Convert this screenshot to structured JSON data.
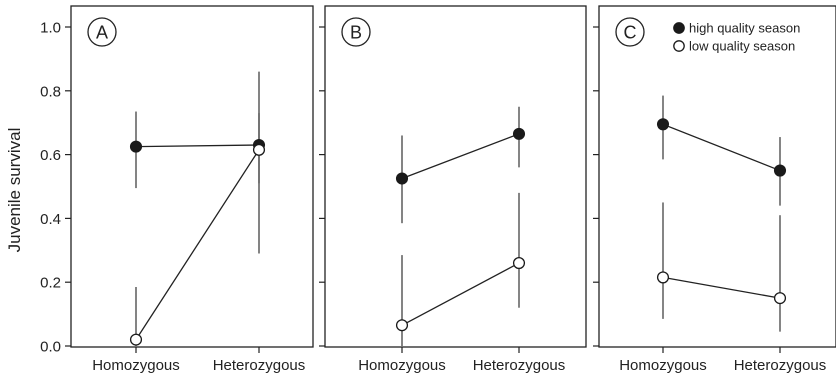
{
  "figure": {
    "ylabel": "Juvenile survival"
  },
  "legend": {
    "high_label": "high quality season",
    "low_label": "low quality season"
  },
  "chart_data": [
    {
      "type": "scatter",
      "panel_label": "A",
      "categories": [
        "Homozygous",
        "Heterozygous"
      ],
      "ylim": [
        0,
        1.05
      ],
      "yticks": [
        "0.0",
        "0.2",
        "0.4",
        "0.6",
        "0.8",
        "1.0"
      ],
      "ylabel": "Juvenile survival",
      "series": [
        {
          "name": "high quality season",
          "marker": "filled",
          "values": [
            0.625,
            0.63
          ],
          "lower": [
            0.495,
            0.51
          ],
          "upper": [
            0.735,
            0.73
          ]
        },
        {
          "name": "low quality season",
          "marker": "open",
          "values": [
            0.02,
            0.615
          ],
          "lower": [
            0.0,
            0.29
          ],
          "upper": [
            0.185,
            0.86
          ]
        }
      ]
    },
    {
      "type": "scatter",
      "panel_label": "B",
      "categories": [
        "Homozygous",
        "Heterozygous"
      ],
      "ylim": [
        0,
        1.05
      ],
      "series": [
        {
          "name": "high quality season",
          "marker": "filled",
          "values": [
            0.525,
            0.665
          ],
          "lower": [
            0.385,
            0.56
          ],
          "upper": [
            0.66,
            0.75
          ]
        },
        {
          "name": "low quality season",
          "marker": "open",
          "values": [
            0.065,
            0.26
          ],
          "lower": [
            0.0,
            0.12
          ],
          "upper": [
            0.285,
            0.48
          ]
        }
      ]
    },
    {
      "type": "scatter",
      "panel_label": "C",
      "categories": [
        "Homozygous",
        "Heterozygous"
      ],
      "ylim": [
        0,
        1.05
      ],
      "series": [
        {
          "name": "high quality season",
          "marker": "filled",
          "values": [
            0.695,
            0.55
          ],
          "lower": [
            0.585,
            0.44
          ],
          "upper": [
            0.785,
            0.655
          ]
        },
        {
          "name": "low quality season",
          "marker": "open",
          "values": [
            0.215,
            0.15
          ],
          "lower": [
            0.085,
            0.045
          ],
          "upper": [
            0.45,
            0.41
          ]
        }
      ]
    }
  ]
}
